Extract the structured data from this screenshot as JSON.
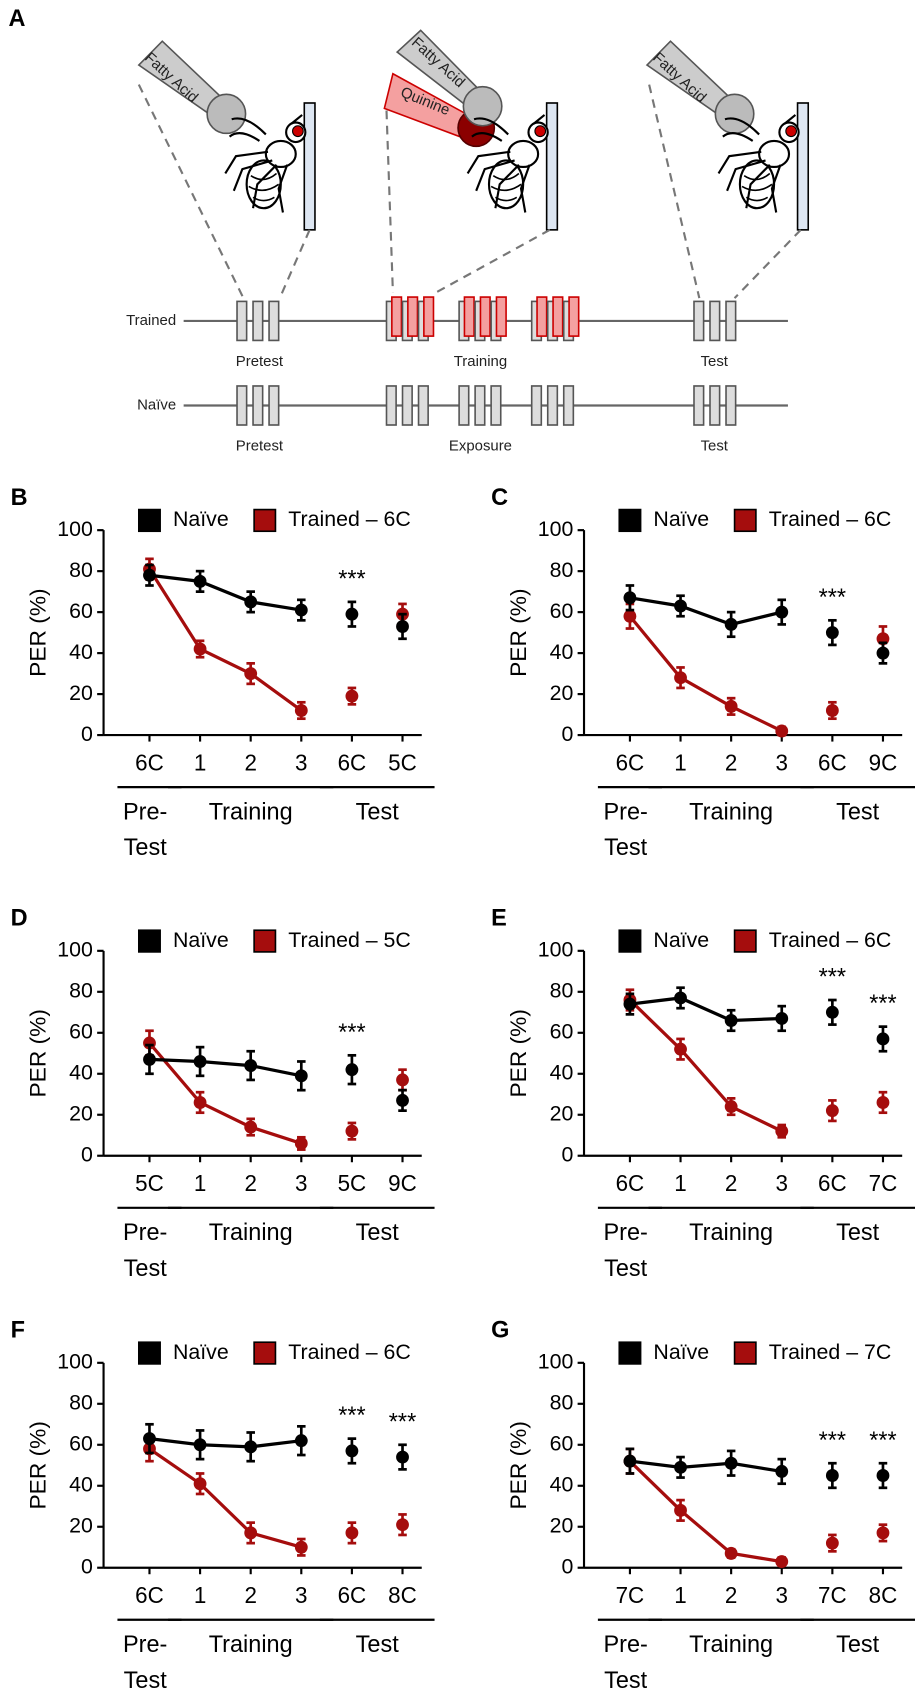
{
  "panel_a": {
    "label": "A",
    "probe_labels": [
      "Fatty Acid",
      "Fatty Acid",
      "Quinine",
      "Fatty Acid"
    ],
    "rows": [
      {
        "name": "Trained",
        "phases": [
          "Pretest",
          "Training",
          "Test"
        ]
      },
      {
        "name": "Naïve",
        "phases": [
          "Pretest",
          "Exposure",
          "Test"
        ]
      }
    ]
  },
  "chart_data": [
    {
      "type": "line",
      "panel": "B",
      "y_label": "PER (%)",
      "ylim": [
        0,
        100
      ],
      "yticks": [
        0,
        20,
        40,
        60,
        80,
        100
      ],
      "categories": [
        "6C",
        "1",
        "2",
        "3",
        "6C",
        "5C"
      ],
      "groups": [
        {
          "label": [
            "Pre-",
            "Test"
          ],
          "from": 0,
          "to": 0,
          "line": true
        },
        {
          "label": [
            "Training"
          ],
          "from": 1,
          "to": 3,
          "line": true
        },
        {
          "label": [
            "Test"
          ],
          "from": 4,
          "to": 5,
          "line": false
        }
      ],
      "series": [
        {
          "name": "Naïve",
          "color": "#000000",
          "values": [
            78,
            75,
            65,
            61,
            59,
            53
          ],
          "errors": [
            5,
            5,
            5,
            5,
            6,
            6
          ]
        },
        {
          "name": "Trained – 6C",
          "color": "#a50d0d",
          "values": [
            81,
            42,
            30,
            12,
            19,
            59
          ],
          "errors": [
            5,
            4,
            5,
            4,
            4,
            5
          ]
        }
      ],
      "annotations": [
        {
          "at": 4,
          "text": "***"
        }
      ]
    },
    {
      "type": "line",
      "panel": "C",
      "y_label": "PER (%)",
      "ylim": [
        0,
        100
      ],
      "yticks": [
        0,
        20,
        40,
        60,
        80,
        100
      ],
      "categories": [
        "6C",
        "1",
        "2",
        "3",
        "6C",
        "9C"
      ],
      "groups": [
        {
          "label": [
            "Pre-",
            "Test"
          ],
          "from": 0,
          "to": 0,
          "line": true
        },
        {
          "label": [
            "Training"
          ],
          "from": 1,
          "to": 3,
          "line": true
        },
        {
          "label": [
            "Test"
          ],
          "from": 4,
          "to": 5,
          "line": false
        }
      ],
      "series": [
        {
          "name": "Naïve",
          "color": "#000000",
          "values": [
            67,
            63,
            54,
            60,
            50,
            40
          ],
          "errors": [
            6,
            5,
            6,
            6,
            6,
            5
          ]
        },
        {
          "name": "Trained – 6C",
          "color": "#a50d0d",
          "values": [
            58,
            28,
            14,
            2,
            12,
            47
          ],
          "errors": [
            6,
            5,
            4,
            2,
            4,
            6
          ]
        }
      ],
      "annotations": [
        {
          "at": 4,
          "text": "***"
        }
      ]
    },
    {
      "type": "line",
      "panel": "D",
      "y_label": "PER (%)",
      "ylim": [
        0,
        100
      ],
      "yticks": [
        0,
        20,
        40,
        60,
        80,
        100
      ],
      "categories": [
        "5C",
        "1",
        "2",
        "3",
        "5C",
        "9C"
      ],
      "groups": [
        {
          "label": [
            "Pre-",
            "Test"
          ],
          "from": 0,
          "to": 0,
          "line": true
        },
        {
          "label": [
            "Training"
          ],
          "from": 1,
          "to": 3,
          "line": true
        },
        {
          "label": [
            "Test"
          ],
          "from": 4,
          "to": 5,
          "line": false
        }
      ],
      "series": [
        {
          "name": "Naïve",
          "color": "#000000",
          "values": [
            47,
            46,
            44,
            39,
            42,
            27
          ],
          "errors": [
            7,
            7,
            7,
            7,
            7,
            5
          ]
        },
        {
          "name": "Trained – 5C",
          "color": "#a50d0d",
          "values": [
            55,
            26,
            14,
            6,
            12,
            37
          ],
          "errors": [
            6,
            5,
            4,
            3,
            4,
            5
          ]
        }
      ],
      "annotations": [
        {
          "at": 4,
          "text": "***"
        }
      ]
    },
    {
      "type": "line",
      "panel": "E",
      "y_label": "PER (%)",
      "ylim": [
        0,
        100
      ],
      "yticks": [
        0,
        20,
        40,
        60,
        80,
        100
      ],
      "categories": [
        "6C",
        "1",
        "2",
        "3",
        "6C",
        "7C"
      ],
      "groups": [
        {
          "label": [
            "Pre-",
            "Test"
          ],
          "from": 0,
          "to": 0,
          "line": true
        },
        {
          "label": [
            "Training"
          ],
          "from": 1,
          "to": 3,
          "line": true
        },
        {
          "label": [
            "Test"
          ],
          "from": 4,
          "to": 5,
          "line": false
        }
      ],
      "series": [
        {
          "name": "Naïve",
          "color": "#000000",
          "values": [
            74,
            77,
            66,
            67,
            70,
            57
          ],
          "errors": [
            5,
            5,
            5,
            6,
            6,
            6
          ]
        },
        {
          "name": "Trained – 6C",
          "color": "#a50d0d",
          "values": [
            76,
            52,
            24,
            12,
            22,
            26
          ],
          "errors": [
            5,
            5,
            4,
            3,
            5,
            5
          ]
        }
      ],
      "annotations": [
        {
          "at": 4,
          "text": "***"
        },
        {
          "at": 5,
          "text": "***"
        }
      ]
    },
    {
      "type": "line",
      "panel": "F",
      "y_label": "PER (%)",
      "ylim": [
        0,
        100
      ],
      "yticks": [
        0,
        20,
        40,
        60,
        80,
        100
      ],
      "categories": [
        "6C",
        "1",
        "2",
        "3",
        "6C",
        "8C"
      ],
      "groups": [
        {
          "label": [
            "Pre-",
            "Test"
          ],
          "from": 0,
          "to": 0,
          "line": true
        },
        {
          "label": [
            "Training"
          ],
          "from": 1,
          "to": 3,
          "line": true
        },
        {
          "label": [
            "Test"
          ],
          "from": 4,
          "to": 5,
          "line": false
        }
      ],
      "series": [
        {
          "name": "Naïve",
          "color": "#000000",
          "values": [
            63,
            60,
            59,
            62,
            57,
            54
          ],
          "errors": [
            7,
            7,
            7,
            7,
            6,
            6
          ]
        },
        {
          "name": "Trained – 6C",
          "color": "#a50d0d",
          "values": [
            58,
            41,
            17,
            10,
            17,
            21
          ],
          "errors": [
            6,
            5,
            5,
            4,
            5,
            5
          ]
        }
      ],
      "annotations": [
        {
          "at": 4,
          "text": "***"
        },
        {
          "at": 5,
          "text": "***"
        }
      ]
    },
    {
      "type": "line",
      "panel": "G",
      "y_label": "PER (%)",
      "ylim": [
        0,
        100
      ],
      "yticks": [
        0,
        20,
        40,
        60,
        80,
        100
      ],
      "categories": [
        "7C",
        "1",
        "2",
        "3",
        "7C",
        "8C"
      ],
      "groups": [
        {
          "label": [
            "Pre-",
            "Test"
          ],
          "from": 0,
          "to": 0,
          "line": true
        },
        {
          "label": [
            "Training"
          ],
          "from": 1,
          "to": 3,
          "line": true
        },
        {
          "label": [
            "Test"
          ],
          "from": 4,
          "to": 5,
          "line": false
        }
      ],
      "series": [
        {
          "name": "Naïve",
          "color": "#000000",
          "values": [
            52,
            49,
            51,
            47,
            45,
            45
          ],
          "errors": [
            6,
            5,
            6,
            6,
            6,
            6
          ]
        },
        {
          "name": "Trained – 7C",
          "color": "#a50d0d",
          "values": [
            52,
            28,
            7,
            3,
            12,
            17
          ],
          "errors": [
            6,
            5,
            2,
            2,
            4,
            4
          ]
        }
      ],
      "annotations": [
        {
          "at": 4,
          "text": "***"
        },
        {
          "at": 5,
          "text": "***"
        }
      ]
    }
  ]
}
